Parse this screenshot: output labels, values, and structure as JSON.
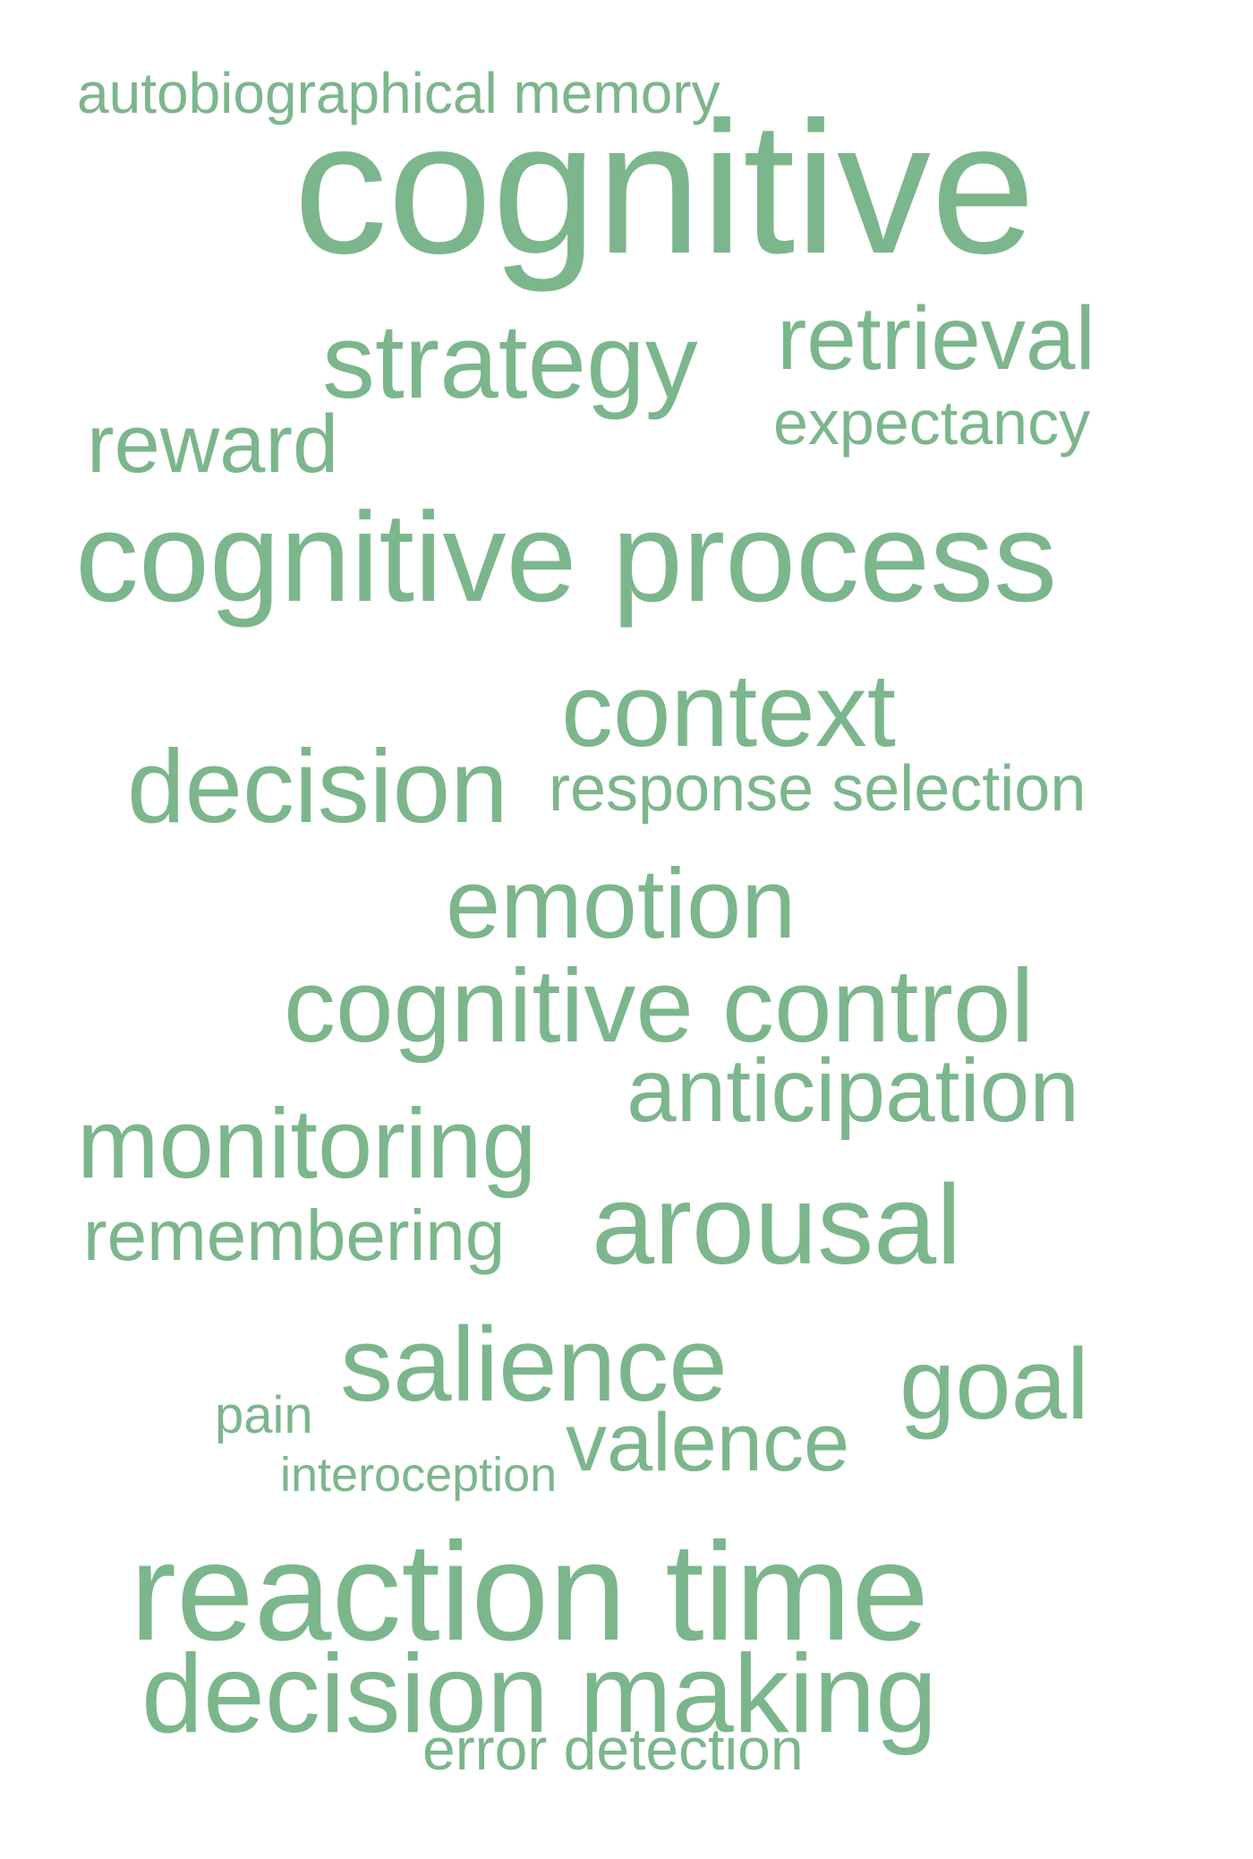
{
  "word_color": "#7cb68c",
  "words": {
    "autobiographical_memory": "autobiographical memory",
    "cognitive": "cognitive",
    "strategy": "strategy",
    "retrieval": "retrieval",
    "expectancy": "expectancy",
    "reward": "reward",
    "cognitive_process": "cognitive process",
    "context": "context",
    "decision": "decision",
    "response_selection": "response selection",
    "emotion": "emotion",
    "cognitive_control": "cognitive control",
    "anticipation": "anticipation",
    "monitoring": "monitoring",
    "remembering": "remembering",
    "arousal": "arousal",
    "salience": "salience",
    "goal": "goal",
    "pain": "pain",
    "valence": "valence",
    "interoception": "interoception",
    "reaction_time": "reaction time",
    "decision_making": "decision making",
    "error_detection": "error detection"
  }
}
